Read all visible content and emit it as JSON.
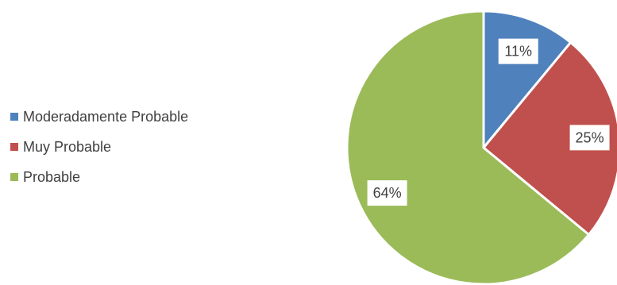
{
  "chart_data": {
    "type": "pie",
    "categories": [
      "Moderadamente Probable",
      "Muy Probable",
      "Probable"
    ],
    "values": [
      11,
      25,
      64
    ],
    "labels": [
      "11%",
      "25%",
      "64%"
    ],
    "colors": [
      "#4F81BD",
      "#C0504D",
      "#9BBB59"
    ],
    "legend": "left"
  }
}
